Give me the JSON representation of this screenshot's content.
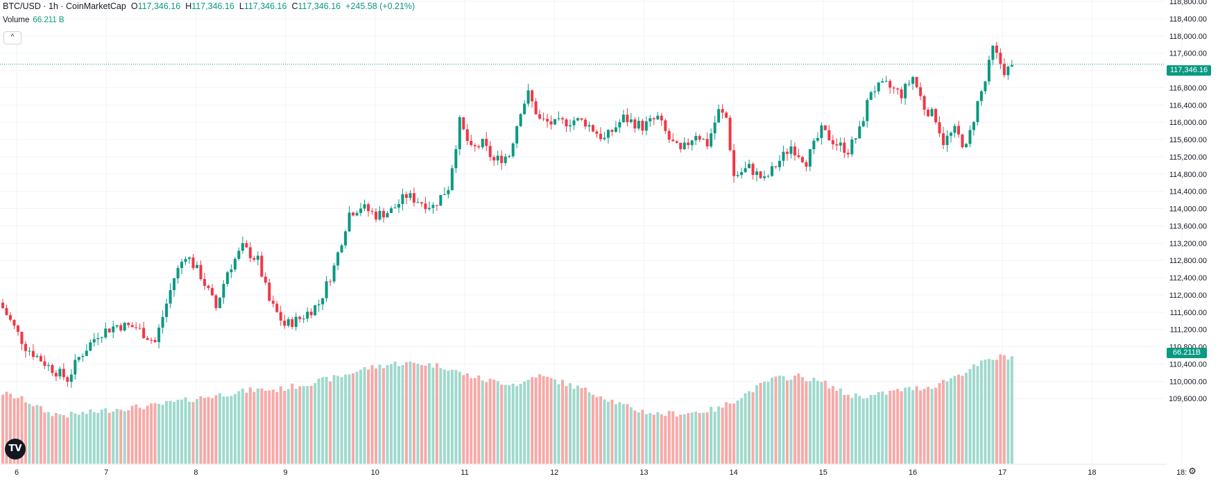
{
  "legend": {
    "symbol": "BTC/USD · 1h · CoinMarketCap",
    "o_label": "O",
    "o_value": "117,346.16",
    "h_label": "H",
    "h_value": "117,346.16",
    "l_label": "L",
    "l_value": "117,346.16",
    "c_label": "C",
    "c_value": "117,346.16",
    "change": "+245.58 (+0.21%)",
    "volume_label": "Volume",
    "volume_value": "66.211 B"
  },
  "badges": {
    "last_price": "117,346.16",
    "last_volume": "66.211B"
  },
  "icons": {
    "collapse": "^",
    "logo": "TV",
    "settings": "⚙"
  },
  "colors": {
    "up": "#089981",
    "down": "#f23645",
    "vol_up": "#9fd9cd",
    "vol_down": "#f7a9a7",
    "grid": "#f0f3fa"
  },
  "chart_data": {
    "type": "candlestick",
    "title": "BTC/USD · 1h · CoinMarketCap",
    "y_ticks": [
      "118,800.00",
      "118,400.00",
      "118,000.00",
      "117,600.00",
      "117,200.00",
      "116,800.00",
      "116,400.00",
      "116,000.00",
      "115,600.00",
      "115,200.00",
      "114,800.00",
      "114,400.00",
      "114,000.00",
      "113,600.00",
      "113,200.00",
      "112,800.00",
      "112,400.00",
      "112,000.00",
      "111,600.00",
      "111,200.00",
      "110,800.00",
      "110,400.00",
      "110,000.00",
      "109,600.00"
    ],
    "ylim": [
      109300,
      119100
    ],
    "x_ticks": [
      "6",
      "7",
      "8",
      "9",
      "10",
      "11",
      "12",
      "13",
      "14",
      "15",
      "16",
      "17",
      "18",
      "18:"
    ],
    "last_price": 117346.16,
    "close_path": [
      [
        0,
        111700
      ],
      [
        6,
        110800
      ],
      [
        12,
        110350
      ],
      [
        17,
        110050
      ],
      [
        20,
        110550
      ],
      [
        25,
        111100
      ],
      [
        30,
        111300
      ],
      [
        35,
        111250
      ],
      [
        40,
        110900
      ],
      [
        45,
        112400
      ],
      [
        48,
        112950
      ],
      [
        52,
        112450
      ],
      [
        56,
        111700
      ],
      [
        59,
        112550
      ],
      [
        63,
        113100
      ],
      [
        67,
        112800
      ],
      [
        70,
        111850
      ],
      [
        74,
        111300
      ],
      [
        78,
        111450
      ],
      [
        83,
        111800
      ],
      [
        87,
        112650
      ],
      [
        91,
        113900
      ],
      [
        94,
        114050
      ],
      [
        98,
        113850
      ],
      [
        102,
        113950
      ],
      [
        106,
        114300
      ],
      [
        110,
        114150
      ],
      [
        113,
        114050
      ],
      [
        117,
        114500
      ],
      [
        120,
        116000
      ],
      [
        123,
        115350
      ],
      [
        126,
        115500
      ],
      [
        129,
        115100
      ],
      [
        133,
        115250
      ],
      [
        136,
        116300
      ],
      [
        138,
        116650
      ],
      [
        141,
        116050
      ],
      [
        145,
        115950
      ],
      [
        150,
        116050
      ],
      [
        153,
        116000
      ],
      [
        158,
        115600
      ],
      [
        163,
        116100
      ],
      [
        168,
        115900
      ],
      [
        172,
        116100
      ],
      [
        175,
        115600
      ],
      [
        178,
        115300
      ],
      [
        182,
        115750
      ],
      [
        185,
        115500
      ],
      [
        188,
        116250
      ],
      [
        190,
        116100
      ],
      [
        192,
        114750
      ],
      [
        196,
        114950
      ],
      [
        200,
        114650
      ],
      [
        203,
        115000
      ],
      [
        207,
        115450
      ],
      [
        211,
        115100
      ],
      [
        215,
        115800
      ],
      [
        219,
        115500
      ],
      [
        222,
        115350
      ],
      [
        225,
        115800
      ],
      [
        228,
        116750
      ],
      [
        232,
        116850
      ],
      [
        236,
        116650
      ],
      [
        239,
        117050
      ],
      [
        242,
        116350
      ],
      [
        245,
        116100
      ],
      [
        247,
        115550
      ],
      [
        250,
        115800
      ],
      [
        253,
        115400
      ],
      [
        256,
        116450
      ],
      [
        258,
        116950
      ],
      [
        260,
        117700
      ],
      [
        263,
        117200
      ],
      [
        265,
        117250
      ]
    ],
    "volume_path": [
      [
        0,
        67
      ],
      [
        6,
        60
      ],
      [
        12,
        48
      ],
      [
        17,
        46
      ],
      [
        22,
        48
      ],
      [
        30,
        52
      ],
      [
        40,
        55
      ],
      [
        48,
        60
      ],
      [
        58,
        66
      ],
      [
        66,
        70
      ],
      [
        72,
        70
      ],
      [
        80,
        76
      ],
      [
        88,
        82
      ],
      [
        95,
        90
      ],
      [
        103,
        95
      ],
      [
        110,
        95
      ],
      [
        116,
        92
      ],
      [
        120,
        86
      ],
      [
        127,
        79
      ],
      [
        136,
        75
      ],
      [
        140,
        84
      ],
      [
        147,
        77
      ],
      [
        156,
        66
      ],
      [
        165,
        52
      ],
      [
        172,
        47
      ],
      [
        180,
        48
      ],
      [
        188,
        52
      ],
      [
        194,
        64
      ],
      [
        202,
        80
      ],
      [
        209,
        83
      ],
      [
        216,
        76
      ],
      [
        222,
        65
      ],
      [
        228,
        64
      ],
      [
        236,
        70
      ],
      [
        244,
        73
      ],
      [
        252,
        86
      ],
      [
        258,
        97
      ],
      [
        263,
        102
      ],
      [
        265,
        101
      ]
    ]
  }
}
